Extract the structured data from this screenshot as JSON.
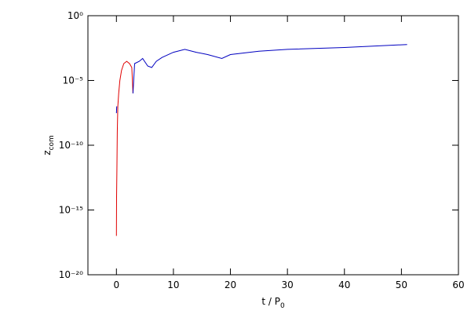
{
  "chart_data": {
    "type": "line",
    "xlabel": {
      "base": "t / P",
      "sub": "0"
    },
    "ylabel": {
      "base": "z",
      "sub": "com"
    },
    "xlim": [
      -5,
      60
    ],
    "xticks": [
      0,
      10,
      20,
      30,
      40,
      50,
      60
    ],
    "ylim": [
      1e-20,
      1
    ],
    "log_y": true,
    "yticks": [
      {
        "value": 1e-20,
        "label": "10⁻²⁰"
      },
      {
        "value": 1e-15,
        "label": "10⁻¹⁵"
      },
      {
        "value": 1e-10,
        "label": "10⁻¹⁰"
      },
      {
        "value": 1e-05,
        "label": "10⁻⁵"
      },
      {
        "value": 1,
        "label": "10⁰"
      }
    ],
    "series": [
      {
        "color": "#e00000",
        "x": [
          0.0,
          0.03,
          0.08,
          0.15,
          0.25,
          0.4,
          0.6,
          0.9,
          1.3,
          1.8,
          2.3,
          2.7,
          2.9
        ],
        "values": [
          1e-17,
          1e-14,
          1e-12,
          1e-09,
          1e-07,
          1e-06,
          1e-05,
          6e-05,
          0.0002,
          0.0003,
          0.0002,
          0.0001,
          1e-06
        ]
      },
      {
        "color": "#0000c0",
        "x": [
          0.0,
          0.05,
          1.0,
          2.9,
          3.2,
          4.0,
          4.6,
          5.5,
          6.2,
          7.0,
          8.0,
          10.0,
          12.0,
          14.0,
          16.0,
          18.5,
          20.0,
          25.0,
          30.0,
          40.0,
          51.0
        ],
        "values": [
          3e-08,
          1e-07,
          null,
          1e-06,
          0.0002,
          0.0003,
          0.0005,
          0.00013,
          0.0001,
          0.0003,
          0.0006,
          0.0015,
          0.0025,
          0.0015,
          0.001,
          0.0005,
          0.001,
          0.0018,
          0.0025,
          0.0035,
          0.006
        ]
      }
    ]
  }
}
